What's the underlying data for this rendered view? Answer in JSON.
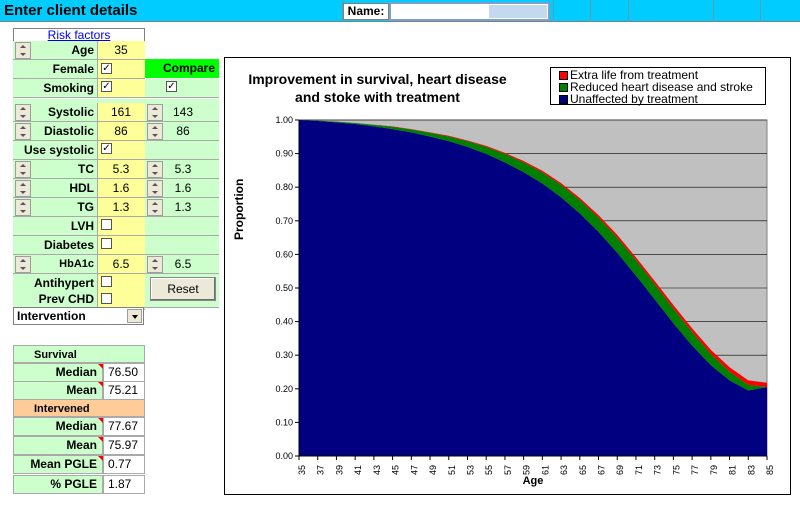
{
  "header": {
    "title": "Enter client details",
    "name_label": "Name:",
    "name_value": ""
  },
  "risk_factors": {
    "title": "Risk factors",
    "compare_label": "Compare",
    "age": {
      "label": "Age",
      "value": "35"
    },
    "female": {
      "label": "Female",
      "checked": true
    },
    "smoking": {
      "label": "Smoking",
      "checked": true,
      "compare_checked": true
    },
    "systolic": {
      "label": "Systolic",
      "value": "161",
      "compare": "143"
    },
    "diastolic": {
      "label": "Diastolic",
      "value": "86",
      "compare": "86"
    },
    "use_systolic": {
      "label": "Use systolic",
      "checked": true
    },
    "tc": {
      "label": "TC",
      "value": "5.3",
      "compare": "5.3"
    },
    "hdl": {
      "label": "HDL",
      "value": "1.6",
      "compare": "1.6"
    },
    "tg": {
      "label": "TG",
      "value": "1.3",
      "compare": "1.3"
    },
    "lvh": {
      "label": "LVH",
      "checked": false
    },
    "diabetes": {
      "label": "Diabetes",
      "checked": false
    },
    "hba1c": {
      "label": "HbA1c",
      "value": "6.5",
      "compare": "6.5"
    },
    "antihypert": {
      "label": "Antihypert",
      "checked": false
    },
    "prev_chd": {
      "label": "Prev CHD",
      "checked": false
    },
    "intervention_select": "Intervention",
    "reset_label": "Reset"
  },
  "results": {
    "survival_header": "Survival",
    "median_label": "Median",
    "median_value": "76.50",
    "mean_label": "Mean",
    "mean_value": "75.21",
    "intervened_header": "Intervened",
    "int_median_label": "Median",
    "int_median_value": "77.67",
    "int_mean_label": "Mean",
    "int_mean_value": "75.97",
    "mean_pgle_label": "Mean PGLE",
    "mean_pgle_value": "0.77",
    "pct_pgle_label": "% PGLE",
    "pct_pgle_value": "1.87"
  },
  "colors": {
    "header_bg": "#00ccff",
    "label_bg": "#ccffcc",
    "input_bg": "#ffff99",
    "compare_bg": "#00ff00",
    "intervened_bg": "#ffcc99",
    "plot_bg": "#c0c0c0",
    "series_unaffected": "#000080",
    "series_reduced": "#008000",
    "series_extra": "#ff0000"
  },
  "chart_data": {
    "type": "area",
    "stacked": true,
    "title": "Improvement in survival, heart disease and stoke with treatment",
    "xlabel": "Age",
    "ylabel": "Proportion",
    "ylim": [
      0,
      1
    ],
    "yticks": [
      "0.00",
      "0.10",
      "0.20",
      "0.30",
      "0.40",
      "0.50",
      "0.60",
      "0.70",
      "0.80",
      "0.90",
      "1.00"
    ],
    "x": [
      35,
      37,
      39,
      41,
      43,
      45,
      47,
      49,
      51,
      53,
      55,
      57,
      59,
      61,
      63,
      65,
      67,
      69,
      71,
      73,
      75,
      77,
      79,
      81,
      83,
      85
    ],
    "legend_position": "top-right",
    "series": [
      {
        "name": "Unaffected by treatment",
        "color": "#000080",
        "values": [
          1.0,
          0.997,
          0.993,
          0.988,
          0.981,
          0.973,
          0.963,
          0.951,
          0.937,
          0.92,
          0.899,
          0.874,
          0.845,
          0.811,
          0.77,
          0.722,
          0.667,
          0.605,
          0.537,
          0.466,
          0.395,
          0.329,
          0.27,
          0.225,
          0.195,
          0.205
        ]
      },
      {
        "name": "Reduced heart disease and stroke",
        "color": "#008000",
        "values": [
          0.0,
          0.001,
          0.002,
          0.003,
          0.005,
          0.007,
          0.009,
          0.011,
          0.014,
          0.017,
          0.021,
          0.025,
          0.029,
          0.033,
          0.037,
          0.04,
          0.043,
          0.045,
          0.046,
          0.046,
          0.044,
          0.04,
          0.034,
          0.026,
          0.017,
          0.0
        ]
      },
      {
        "name": "Extra life from treatment",
        "color": "#ff0000",
        "values": [
          0.0,
          0.0,
          0.0,
          0.0,
          0.0,
          0.001,
          0.001,
          0.001,
          0.002,
          0.002,
          0.003,
          0.003,
          0.004,
          0.005,
          0.005,
          0.006,
          0.007,
          0.008,
          0.008,
          0.009,
          0.01,
          0.011,
          0.012,
          0.013,
          0.013,
          0.013
        ]
      }
    ]
  }
}
